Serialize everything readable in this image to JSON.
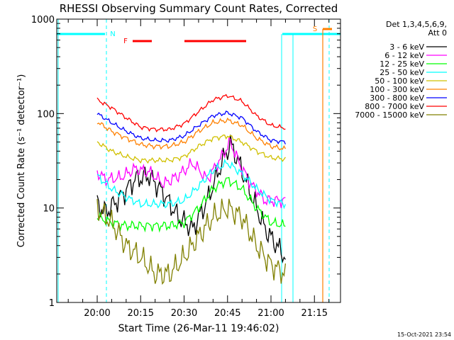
{
  "chart_data": {
    "type": "line",
    "title": "RHESSI Observing Summary Count Rates, Corrected",
    "xlabel": "Start Time (26-Mar-11 19:46:02)",
    "ylabel": "Corrected Count Rate (s⁻¹ detector⁻¹)",
    "xlim": [
      "19:46:02",
      "21:24:00"
    ],
    "x_tick_labels": [
      "20:00",
      "20:15",
      "20:30",
      "20:45",
      "21:00",
      "21:15"
    ],
    "x_tick_minutes": [
      1200,
      1215,
      1230,
      1245,
      1260,
      1275
    ],
    "ylim": [
      1,
      1000
    ],
    "yscale": "log",
    "y_tick_labels": [
      "1",
      "10",
      "100",
      "1000"
    ],
    "y_tick_values": [
      1,
      10,
      100,
      1000
    ],
    "legend_header": [
      "Det 1,3,4,5,6,9,",
      "Att 0"
    ],
    "legend_position": "right",
    "timestamp": "15-Oct-2021 23:54",
    "markers": [
      {
        "label": "N",
        "color": "#00ffff"
      },
      {
        "label": "F",
        "color": "#ff0000"
      },
      {
        "label": "S",
        "color": "#ff8000"
      }
    ],
    "series": [
      {
        "name": "3 - 6 keV",
        "color": "#000000",
        "x": [
          1200,
          1203,
          1208,
          1213,
          1218,
          1223,
          1228,
          1233,
          1238,
          1243,
          1246,
          1249,
          1253,
          1258,
          1262,
          1265
        ],
        "y": [
          11,
          9,
          13,
          20,
          22,
          14,
          8,
          6,
          12,
          30,
          48,
          30,
          14,
          6,
          4,
          3
        ]
      },
      {
        "name": "6 - 12 keV",
        "color": "#ff00ff",
        "x": [
          1200,
          1203,
          1208,
          1213,
          1218,
          1223,
          1228,
          1233,
          1238,
          1243,
          1246,
          1249,
          1253,
          1258,
          1262,
          1265
        ],
        "y": [
          24,
          20,
          21,
          26,
          24,
          18,
          22,
          30,
          20,
          35,
          50,
          30,
          18,
          12,
          12,
          12
        ]
      },
      {
        "name": "12 - 25 keV",
        "color": "#00ff00",
        "x": [
          1200,
          1205,
          1210,
          1215,
          1220,
          1225,
          1230,
          1235,
          1240,
          1245,
          1250,
          1255,
          1260,
          1265
        ],
        "y": [
          8,
          7,
          6.5,
          6.5,
          6.5,
          6.5,
          7,
          10,
          16,
          20,
          16,
          10,
          7,
          6.5
        ]
      },
      {
        "name": "25 - 50 keV",
        "color": "#00ffff",
        "x": [
          1200,
          1205,
          1210,
          1215,
          1220,
          1225,
          1230,
          1235,
          1240,
          1245,
          1250,
          1255,
          1260,
          1265
        ],
        "y": [
          22,
          16,
          13,
          11,
          11,
          11,
          12,
          17,
          25,
          30,
          23,
          16,
          12,
          11
        ]
      },
      {
        "name": "50 - 100 keV",
        "color": "#d0c000",
        "x": [
          1200,
          1205,
          1210,
          1215,
          1220,
          1225,
          1230,
          1235,
          1240,
          1245,
          1250,
          1255,
          1260,
          1265
        ],
        "y": [
          50,
          40,
          35,
          32,
          32,
          32,
          35,
          45,
          55,
          58,
          50,
          40,
          34,
          33
        ]
      },
      {
        "name": "100 - 300 keV",
        "color": "#ff8000",
        "x": [
          1200,
          1205,
          1210,
          1215,
          1220,
          1225,
          1230,
          1235,
          1240,
          1245,
          1250,
          1255,
          1260,
          1265
        ],
        "y": [
          82,
          65,
          55,
          47,
          45,
          45,
          50,
          65,
          80,
          85,
          75,
          55,
          45,
          42
        ]
      },
      {
        "name": "300 - 800 keV",
        "color": "#0000ff",
        "x": [
          1200,
          1205,
          1210,
          1215,
          1220,
          1225,
          1230,
          1235,
          1240,
          1245,
          1250,
          1255,
          1260,
          1265
        ],
        "y": [
          100,
          80,
          65,
          55,
          52,
          52,
          58,
          75,
          95,
          102,
          90,
          65,
          52,
          50
        ]
      },
      {
        "name": "800 - 7000 keV",
        "color": "#ff0000",
        "x": [
          1200,
          1205,
          1210,
          1215,
          1220,
          1225,
          1230,
          1235,
          1240,
          1245,
          1250,
          1255,
          1260,
          1265
        ],
        "y": [
          140,
          115,
          90,
          72,
          68,
          68,
          78,
          105,
          140,
          155,
          135,
          95,
          75,
          70
        ]
      },
      {
        "name": "7000 - 15000 keV",
        "color": "#808000",
        "x": [
          1200,
          1205,
          1210,
          1215,
          1220,
          1225,
          1230,
          1235,
          1240,
          1245,
          1250,
          1255,
          1260,
          1265
        ],
        "y": [
          10,
          7,
          4,
          3,
          2,
          2,
          3,
          5,
          8,
          10,
          8,
          4,
          2.5,
          2
        ]
      }
    ]
  }
}
